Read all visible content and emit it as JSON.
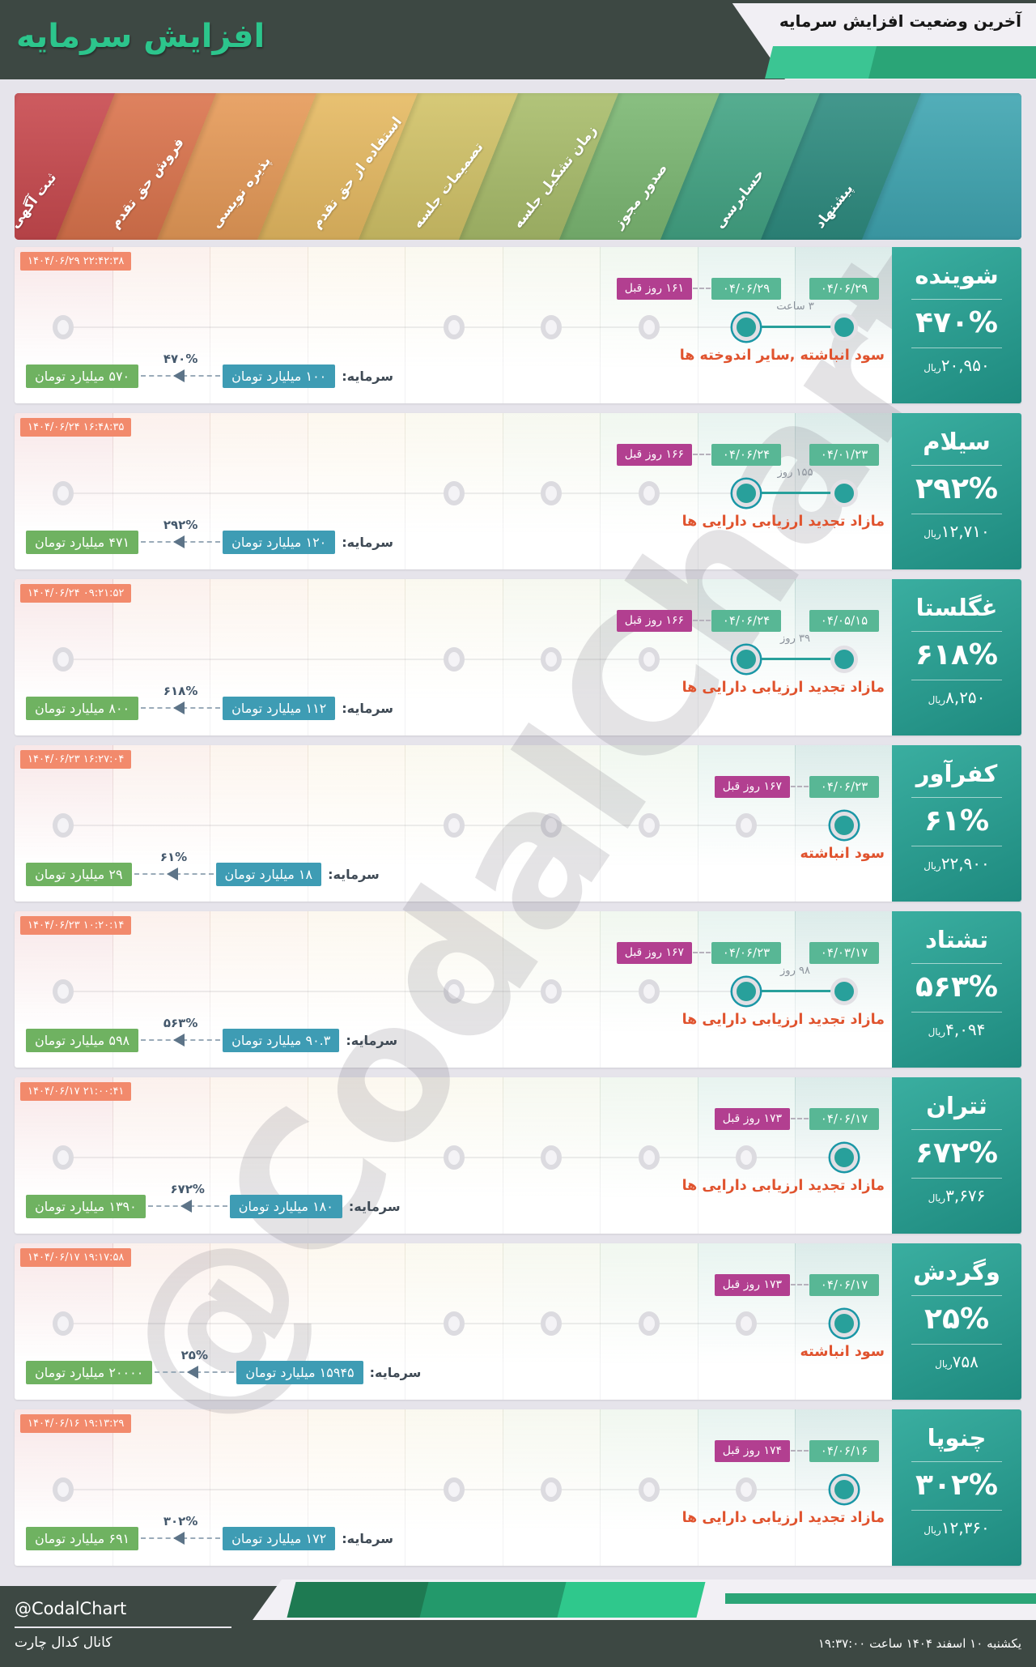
{
  "header": {
    "subtitle": "آخرین وضعیت افزایش سرمایه",
    "title": "افزایش سرمایه"
  },
  "stages": [
    {
      "label": "ثبت آگهی",
      "color": "#c8494e",
      "tint": "rgba(200,73,78,0.13)"
    },
    {
      "label": "فروش حق تقدم",
      "color": "#db744d",
      "tint": "rgba(219,116,77,0.10)"
    },
    {
      "label": "پذیره نویسی",
      "color": "#e69a58",
      "tint": "rgba(230,154,88,0.10)"
    },
    {
      "label": "استفاده از حق تقدم",
      "color": "#e6ba62",
      "tint": "rgba(230,186,98,0.10)"
    },
    {
      "label": "تصمیمات جلسه",
      "color": "#d2c368",
      "tint": "rgba(210,195,104,0.10)"
    },
    {
      "label": "زمان تشکیل جلسه",
      "color": "#a9bd6b",
      "tint": "rgba(169,189,107,0.10)"
    },
    {
      "label": "صدور مجوز",
      "color": "#7cb873",
      "tint": "rgba(124,184,115,0.11)"
    },
    {
      "label": "حسابرسی",
      "color": "#43a484",
      "tint": "rgba(67,164,132,0.12)"
    },
    {
      "label": "پیشنهاد",
      "color": "#2e8c80",
      "tint": "rgba(46,140,128,0.17)"
    }
  ],
  "band_end_color": "#3fa5b1",
  "labels": {
    "capital": "سرمایه:",
    "rial": "ریال"
  },
  "rows": [
    {
      "name": "شوینده",
      "timestamp": "۱۴۰۴/۰۶/۲۹ ۲۲:۴۲:۳۸",
      "ago": "۱۶۱ روز قبل",
      "date_right": "۰۴/۰۶/۲۹",
      "date_left": "۰۴/۰۶/۲۹",
      "span": "۳ ساعت",
      "desc": "سود انباشته ,سایر اندوخته ها",
      "pct": "۴۷۰%",
      "rial": "۲۰,۹۵۰",
      "cap_from": "۱۰۰ میلیارد تومان",
      "cap_to": "۵۷۰ میلیارد تومان",
      "cap_pct": "۴۷۰%",
      "gray_cols": [
        0,
        4,
        5,
        6
      ],
      "dots": [
        {
          "col": 8
        },
        {
          "col": 7,
          "ring": true
        }
      ]
    },
    {
      "name": "سیلام",
      "timestamp": "۱۴۰۴/۰۶/۲۴ ۱۶:۴۸:۳۵",
      "ago": "۱۶۶ روز قبل",
      "date_right": "۰۴/۰۱/۲۳",
      "date_left": "۰۴/۰۶/۲۴",
      "span": "۱۵۵ روز",
      "desc": "مازاد تجدید ارزیابی دارایی ها",
      "pct": "۲۹۲%",
      "rial": "۱۲,۷۱۰",
      "cap_from": "۱۲۰ میلیارد تومان",
      "cap_to": "۴۷۱ میلیارد تومان",
      "cap_pct": "۲۹۲%",
      "gray_cols": [
        0,
        4,
        5,
        6
      ],
      "dots": [
        {
          "col": 8
        },
        {
          "col": 7,
          "ring": true
        }
      ]
    },
    {
      "name": "غگلستا",
      "timestamp": "۱۴۰۴/۰۶/۲۴ ۰۹:۲۱:۵۲",
      "ago": "۱۶۶ روز قبل",
      "date_right": "۰۴/۰۵/۱۵",
      "date_left": "۰۴/۰۶/۲۴",
      "span": "۳۹ روز",
      "desc": "مازاد تجدید ارزیابی دارایی ها",
      "pct": "۶۱۸%",
      "rial": "۸,۲۵۰",
      "cap_from": "۱۱۲ میلیارد تومان",
      "cap_to": "۸۰۰ میلیارد تومان",
      "cap_pct": "۶۱۸%",
      "gray_cols": [
        0,
        4,
        5,
        6
      ],
      "dots": [
        {
          "col": 8
        },
        {
          "col": 7,
          "ring": true
        }
      ]
    },
    {
      "name": "کفرآور",
      "timestamp": "۱۴۰۴/۰۶/۲۳ ۱۶:۲۷:۰۴",
      "ago": "۱۶۷ روز قبل",
      "date_right": "۰۴/۰۶/۲۳",
      "date_left": null,
      "span": null,
      "desc": "سود انباشته",
      "pct": "۶۱%",
      "rial": "۲۲,۹۰۰",
      "cap_from": "۱۸ میلیارد تومان",
      "cap_to": "۲۹ میلیارد تومان",
      "cap_pct": "۶۱%",
      "gray_cols": [
        0,
        4,
        5,
        6,
        7
      ],
      "dots": [
        {
          "col": 8,
          "ring": true
        }
      ]
    },
    {
      "name": "تشتاد",
      "timestamp": "۱۴۰۴/۰۶/۲۳ ۱۰:۲۰:۱۴",
      "ago": "۱۶۷ روز قبل",
      "date_right": "۰۴/۰۳/۱۷",
      "date_left": "۰۴/۰۶/۲۳",
      "span": "۹۸ روز",
      "desc": "مازاد تجدید ارزیابی دارایی ها",
      "pct": "۵۶۳%",
      "rial": "۴,۰۹۴",
      "cap_from": "۹۰.۳ میلیارد تومان",
      "cap_to": "۵۹۸ میلیارد تومان",
      "cap_pct": "۵۶۳%",
      "gray_cols": [
        0,
        4,
        5,
        6
      ],
      "dots": [
        {
          "col": 8
        },
        {
          "col": 7,
          "ring": true
        }
      ]
    },
    {
      "name": "ثتران",
      "timestamp": "۱۴۰۴/۰۶/۱۷ ۲۱:۰۰:۴۱",
      "ago": "۱۷۳ روز قبل",
      "date_right": "۰۴/۰۶/۱۷",
      "date_left": null,
      "span": null,
      "desc": "مازاد تجدید ارزیابی دارایی ها",
      "pct": "۶۷۲%",
      "rial": "۳,۶۷۶",
      "cap_from": "۱۸۰ میلیارد تومان",
      "cap_to": "۱۳۹۰ میلیارد تومان",
      "cap_pct": "۶۷۲%",
      "gray_cols": [
        0,
        4,
        5,
        6,
        7
      ],
      "dots": [
        {
          "col": 8,
          "ring": true
        }
      ]
    },
    {
      "name": "وگردش",
      "timestamp": "۱۴۰۴/۰۶/۱۷ ۱۹:۱۷:۵۸",
      "ago": "۱۷۳ روز قبل",
      "date_right": "۰۴/۰۶/۱۷",
      "date_left": null,
      "span": null,
      "desc": "سود انباشته",
      "pct": "۲۵%",
      "rial": "۷۵۸",
      "cap_from": "۱۵۹۴۵ میلیارد تومان",
      "cap_to": "۲۰۰۰۰ میلیارد تومان",
      "cap_pct": "۲۵%",
      "gray_cols": [
        0,
        4,
        5,
        6,
        7
      ],
      "dots": [
        {
          "col": 8,
          "ring": true
        }
      ]
    },
    {
      "name": "چنوپا",
      "timestamp": "۱۴۰۴/۰۶/۱۶ ۱۹:۱۳:۲۹",
      "ago": "۱۷۴ روز قبل",
      "date_right": "۰۴/۰۶/۱۶",
      "date_left": null,
      "span": null,
      "desc": "مازاد تجدید ارزیابی دارایی ها",
      "pct": "۳۰۲%",
      "rial": "۱۲,۳۶۰",
      "cap_from": "۱۷۲ میلیارد تومان",
      "cap_to": "۶۹۱ میلیارد تومان",
      "cap_pct": "۳۰۲%",
      "gray_cols": [
        0,
        4,
        5,
        6,
        7
      ],
      "dots": [
        {
          "col": 8,
          "ring": true
        }
      ]
    }
  ],
  "watermark": "@CodalChart",
  "footer": {
    "handle": "@CodalChart",
    "channel": "کانال کدال چارت",
    "datetime": "یکشنبه ۱۰ اسفند ۱۴۰۴ ساعت ۱۹:۳۷:۰۰"
  },
  "chart_data": {
    "type": "table",
    "title": "آخرین وضعیت افزایش سرمایه",
    "columns": [
      "symbol",
      "increase_pct",
      "price_rial",
      "capital_from_billion_toman",
      "capital_to_billion_toman",
      "source",
      "latest_stage_date",
      "days_ago"
    ],
    "rows": [
      [
        "شوینده",
        470,
        20950,
        100,
        570,
        "سود انباشته، سایر اندوخته ها",
        "04/06/29",
        161
      ],
      [
        "سیلام",
        292,
        12710,
        120,
        471,
        "مازاد تجدید ارزیابی دارایی ها",
        "04/06/24",
        166
      ],
      [
        "غگلستا",
        618,
        8250,
        112,
        800,
        "مازاد تجدید ارزیابی دارایی ها",
        "04/06/24",
        166
      ],
      [
        "کفرآور",
        61,
        22900,
        18,
        29,
        "سود انباشته",
        "04/06/23",
        167
      ],
      [
        "تشتاد",
        563,
        4094,
        90.3,
        598,
        "مازاد تجدید ارزیابی دارایی ها",
        "04/06/23",
        167
      ],
      [
        "ثتران",
        672,
        3676,
        180,
        1390,
        "مازاد تجدید ارزیابی دارایی ها",
        "04/06/17",
        173
      ],
      [
        "وگردش",
        25,
        758,
        15945,
        20000,
        "سود انباشته",
        "04/06/17",
        173
      ],
      [
        "چنوپا",
        302,
        12360,
        172,
        691,
        "مازاد تجدید ارزیابی دارایی ها",
        "04/06/16",
        174
      ]
    ]
  }
}
